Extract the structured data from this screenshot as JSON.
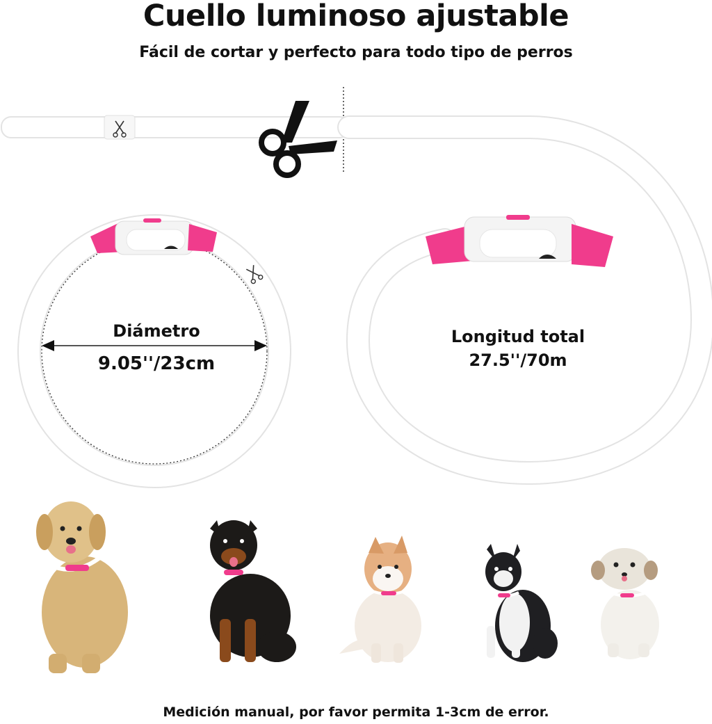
{
  "header": {
    "title": "Cuello luminoso ajustable",
    "subtitle": "Fácil de cortar y perfecto para todo tipo de perros"
  },
  "measurements": {
    "diameter_label": "Diámetro",
    "diameter_value": "9.05''/23cm",
    "length_label": "Longitud total",
    "length_value": "27.5''/70m"
  },
  "footer": {
    "note": "Medición manual, por favor permita 1-3cm de error."
  },
  "colors": {
    "accent_pink": "#f03c8c",
    "tube_white": "#ffffff",
    "tube_outline": "#e6e6e6",
    "text": "#111111"
  },
  "icons": [
    "scissors-icon",
    "small-scissors-icon"
  ],
  "dogs": [
    "golden-retriever",
    "rottweiler",
    "pomeranian",
    "boston-terrier",
    "shih-tzu"
  ]
}
